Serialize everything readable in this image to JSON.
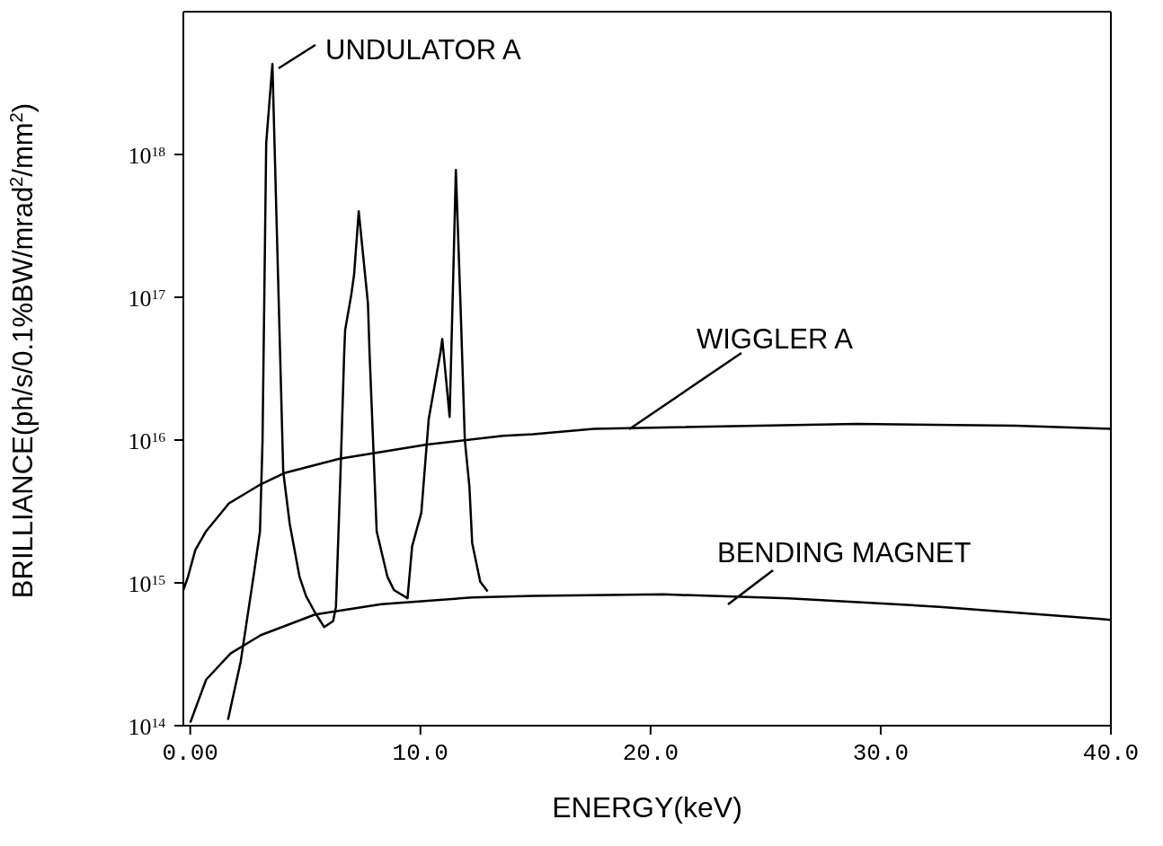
{
  "chart_data": {
    "type": "line",
    "xlabel": "ENERGY(keV)",
    "ylabel": "BRILLIANCE(ph/s/0.1%BW/mrad$^{2}$/mm$^{2}$)",
    "log": "y",
    "xlim": [
      -0.3,
      40
    ],
    "ylim": [
      100000000000000.0,
      1e+19
    ],
    "xticks": [
      {
        "value": 0,
        "label": "0.00"
      },
      {
        "value": 10,
        "label": "10.0"
      },
      {
        "value": 20,
        "label": "20.0"
      },
      {
        "value": 30,
        "label": "30.0"
      },
      {
        "value": 40,
        "label": "40.0"
      }
    ],
    "yticks": [
      {
        "value": 100000000000000.0,
        "label": "10$^{14}$"
      },
      {
        "value": 1000000000000000.0,
        "label": "10$^{15}$"
      },
      {
        "value": 1e+16,
        "label": "10$^{16}$"
      },
      {
        "value": 1e+17,
        "label": "10$^{17}$"
      },
      {
        "value": 1e+18,
        "label": "10$^{18}$"
      }
    ],
    "marker": "none",
    "line_style": "solid",
    "series": [
      {
        "name": "UNDULATOR A",
        "color": "#000000",
        "x": [
          1.64,
          2.19,
          2.78,
          3.03,
          3.14,
          3.3,
          3.57,
          4.04,
          4.32,
          4.75,
          5.03,
          5.42,
          5.82,
          6.21,
          6.33,
          6.53,
          6.69,
          6.73,
          7.0,
          7.12,
          7.32,
          7.72,
          7.79,
          8.1,
          8.57,
          8.85,
          9.44,
          9.64,
          10.04,
          10.36,
          10.87,
          10.95,
          11.27,
          11.46,
          11.54,
          11.74,
          11.93,
          12.13,
          12.25,
          12.6,
          12.92
        ],
        "values": [
          110000000000000.0,
          280000000000000.0,
          1200000000000000.0,
          2300000000000000.0,
          9800000000000000.0,
          1.2e+18,
          4.3e+18,
          6000000000000000.0,
          2600000000000000.0,
          1100000000000000.0,
          810000000000000.0,
          620000000000000.0,
          490000000000000.0,
          540000000000000.0,
          680000000000000.0,
          6000000000000000.0,
          4.1e+16,
          5.9e+16,
          1.05e+17,
          1.45e+17,
          4e+17,
          9.1e+16,
          4.1e+16,
          2300000000000000.0,
          1100000000000000.0,
          890000000000000.0,
          780000000000000.0,
          1800000000000000.0,
          3100000000000000.0,
          1.4e+16,
          4.1e+16,
          5.1e+16,
          1.45e+16,
          2.3e+17,
          7.8e+17,
          9.1e+16,
          1e+16,
          4700000000000000.0,
          1900000000000000.0,
          1020000000000000.0,
          870000000000000.0
        ]
      },
      {
        "name": "WIGGLER A",
        "color": "#000000",
        "x": [
          -0.3,
          -0.1,
          0.22,
          0.69,
          1.68,
          3.06,
          4.12,
          6.49,
          10.28,
          13.59,
          14.89,
          17.54,
          28.97,
          35.87,
          40
        ],
        "values": [
          890000000000000.0,
          1100000000000000.0,
          1700000000000000.0,
          2300000000000000.0,
          3600000000000000.0,
          4900000000000000.0,
          5900000000000000.0,
          7400000000000000.0,
          9300000000000000.0,
          1.07e+16,
          1.1e+16,
          1.2e+16,
          1.3e+16,
          1.26e+16,
          1.2e+16
        ]
      },
      {
        "name": "BENDING MAGNET",
        "color": "#000000",
        "x": [
          0.0,
          0.69,
          1.75,
          3.06,
          5.42,
          8.3,
          12.25,
          14.89,
          20.57,
          26.0,
          32.55,
          39.46,
          40
        ],
        "values": [
          105000000000000.0,
          210000000000000.0,
          320000000000000.0,
          430000000000000.0,
          600000000000000.0,
          710000000000000.0,
          790000000000000.0,
          810000000000000.0,
          830000000000000.0,
          780000000000000.0,
          680000000000000.0,
          560000000000000.0,
          550000000000000.0
        ]
      }
    ]
  }
}
